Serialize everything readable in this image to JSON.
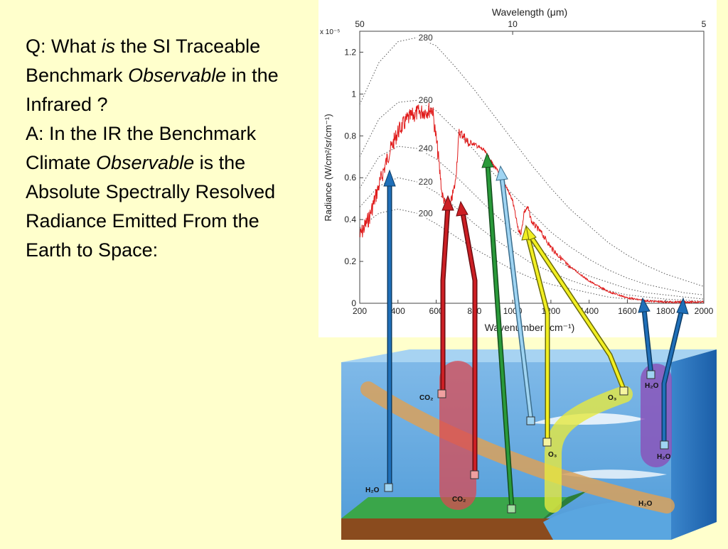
{
  "slide": {
    "q_prefix": "Q: What ",
    "q_em1": "is",
    "q_mid": " the SI Traceable Benchmark ",
    "q_em2": "Observable",
    "q_suffix": " in the Infrared ?",
    "a_prefix": "A: In the IR the Benchmark Climate ",
    "a_em": "Observable",
    "a_suffix": " is the Absolute Spectrally Resolved Radiance Emitted From the Earth to Space:"
  },
  "chart": {
    "top_axis_label": "Wavelength (μm)",
    "top_ticks": [
      "50",
      "10",
      "5"
    ],
    "y_label": "Radiance (W/cm²/sr/cm⁻¹)",
    "y_exponent": "x 10⁻⁵",
    "y_ticks": [
      "0",
      "0.2",
      "0.4",
      "0.6",
      "0.8",
      "1",
      "1.2"
    ],
    "x_label": "Wavenumber (cm⁻¹)",
    "x_ticks": [
      "200",
      "400",
      "600",
      "800",
      "1000",
      "1200",
      "1400",
      "1600",
      "1800",
      "2000"
    ],
    "planck_labels": [
      "280",
      "260",
      "240",
      "220",
      "200"
    ]
  },
  "chart_data": {
    "type": "line",
    "x_unit": "wavenumber cm-1",
    "xlim": [
      200,
      2000
    ],
    "ylim": [
      0,
      1.3
    ],
    "y_scale": 1e-05,
    "series": [
      {
        "kind": "observed-spectrum",
        "color": "#e01b1b",
        "x": [
          200,
          250,
          300,
          350,
          400,
          450,
          500,
          550,
          580,
          610,
          630,
          650,
          665,
          680,
          700,
          720,
          740,
          760,
          780,
          800,
          850,
          900,
          950,
          1000,
          1030,
          1045,
          1060,
          1080,
          1100,
          1150,
          1200,
          1300,
          1400,
          1500,
          1600,
          1700,
          1800,
          1900,
          2000
        ],
        "y": [
          0.36,
          0.45,
          0.6,
          0.75,
          0.86,
          0.92,
          0.95,
          0.96,
          0.97,
          0.75,
          0.55,
          0.49,
          0.45,
          0.52,
          0.6,
          0.84,
          0.83,
          0.8,
          0.78,
          0.77,
          0.74,
          0.67,
          0.6,
          0.5,
          0.36,
          0.35,
          0.45,
          0.47,
          0.4,
          0.35,
          0.28,
          0.18,
          0.11,
          0.06,
          0.03,
          0.015,
          0.01,
          0.01,
          0.01
        ]
      },
      {
        "kind": "planck",
        "temperature": "280",
        "x": [
          200,
          300,
          400,
          500,
          600,
          700,
          800,
          900,
          1000,
          1100,
          1200,
          1300,
          1400,
          1500,
          1600,
          1700,
          1800,
          1900,
          2000
        ],
        "y": [
          0.95,
          1.15,
          1.25,
          1.27,
          1.23,
          1.13,
          1.02,
          0.9,
          0.78,
          0.66,
          0.55,
          0.45,
          0.37,
          0.29,
          0.23,
          0.18,
          0.14,
          0.11,
          0.08
        ]
      },
      {
        "kind": "planck",
        "temperature": "260",
        "x": [
          200,
          300,
          400,
          500,
          600,
          700,
          800,
          900,
          1000,
          1100,
          1200,
          1300,
          1400,
          1500,
          1600,
          1700,
          1800,
          1900,
          2000
        ],
        "y": [
          0.7,
          0.88,
          0.96,
          0.97,
          0.92,
          0.83,
          0.73,
          0.62,
          0.52,
          0.43,
          0.34,
          0.27,
          0.21,
          0.16,
          0.12,
          0.09,
          0.07,
          0.05,
          0.04
        ]
      },
      {
        "kind": "planck",
        "temperature": "240",
        "x": [
          200,
          300,
          400,
          500,
          600,
          700,
          800,
          900,
          1000,
          1100,
          1200,
          1300,
          1400,
          1500,
          1600,
          1700,
          1800,
          1900,
          2000
        ],
        "y": [
          0.55,
          0.7,
          0.75,
          0.74,
          0.69,
          0.61,
          0.52,
          0.43,
          0.35,
          0.28,
          0.22,
          0.17,
          0.13,
          0.1,
          0.07,
          0.05,
          0.04,
          0.03,
          0.02
        ]
      },
      {
        "kind": "planck",
        "temperature": "220",
        "x": [
          200,
          300,
          400,
          500,
          600,
          700,
          800,
          900,
          1000,
          1100,
          1200,
          1300,
          1400,
          1500,
          1600,
          1700,
          1800,
          1900,
          2000
        ],
        "y": [
          0.46,
          0.56,
          0.6,
          0.58,
          0.53,
          0.46,
          0.38,
          0.31,
          0.25,
          0.19,
          0.15,
          0.11,
          0.08,
          0.06,
          0.04,
          0.03,
          0.02,
          0.015,
          0.01
        ]
      },
      {
        "kind": "planck",
        "temperature": "200",
        "x": [
          200,
          300,
          400,
          500,
          600,
          700,
          800,
          900,
          1000,
          1100,
          1200,
          1300,
          1400,
          1500,
          1600,
          1700,
          1800,
          1900,
          2000
        ],
        "y": [
          0.36,
          0.43,
          0.45,
          0.43,
          0.38,
          0.32,
          0.26,
          0.21,
          0.16,
          0.12,
          0.09,
          0.07,
          0.05,
          0.03,
          0.02,
          0.015,
          0.01,
          0.008,
          0.005
        ]
      }
    ]
  },
  "atmosphere": {
    "labels": {
      "co2_mid": "CO₂",
      "co2_bottom": "CO₂",
      "o3_top": "O₃",
      "o3_mid": "O₃",
      "h2o_left": "H₂O",
      "h2o_right_top": "H₂O",
      "h2o_right_mid": "H₂O",
      "h2o_bottom_right": "H₂O"
    },
    "colors": {
      "blue": "#1f6fb8",
      "red": "#cc1f24",
      "green": "#2a9a3a",
      "light_blue": "#9fd4f2",
      "yellow": "#f2ef22"
    }
  }
}
